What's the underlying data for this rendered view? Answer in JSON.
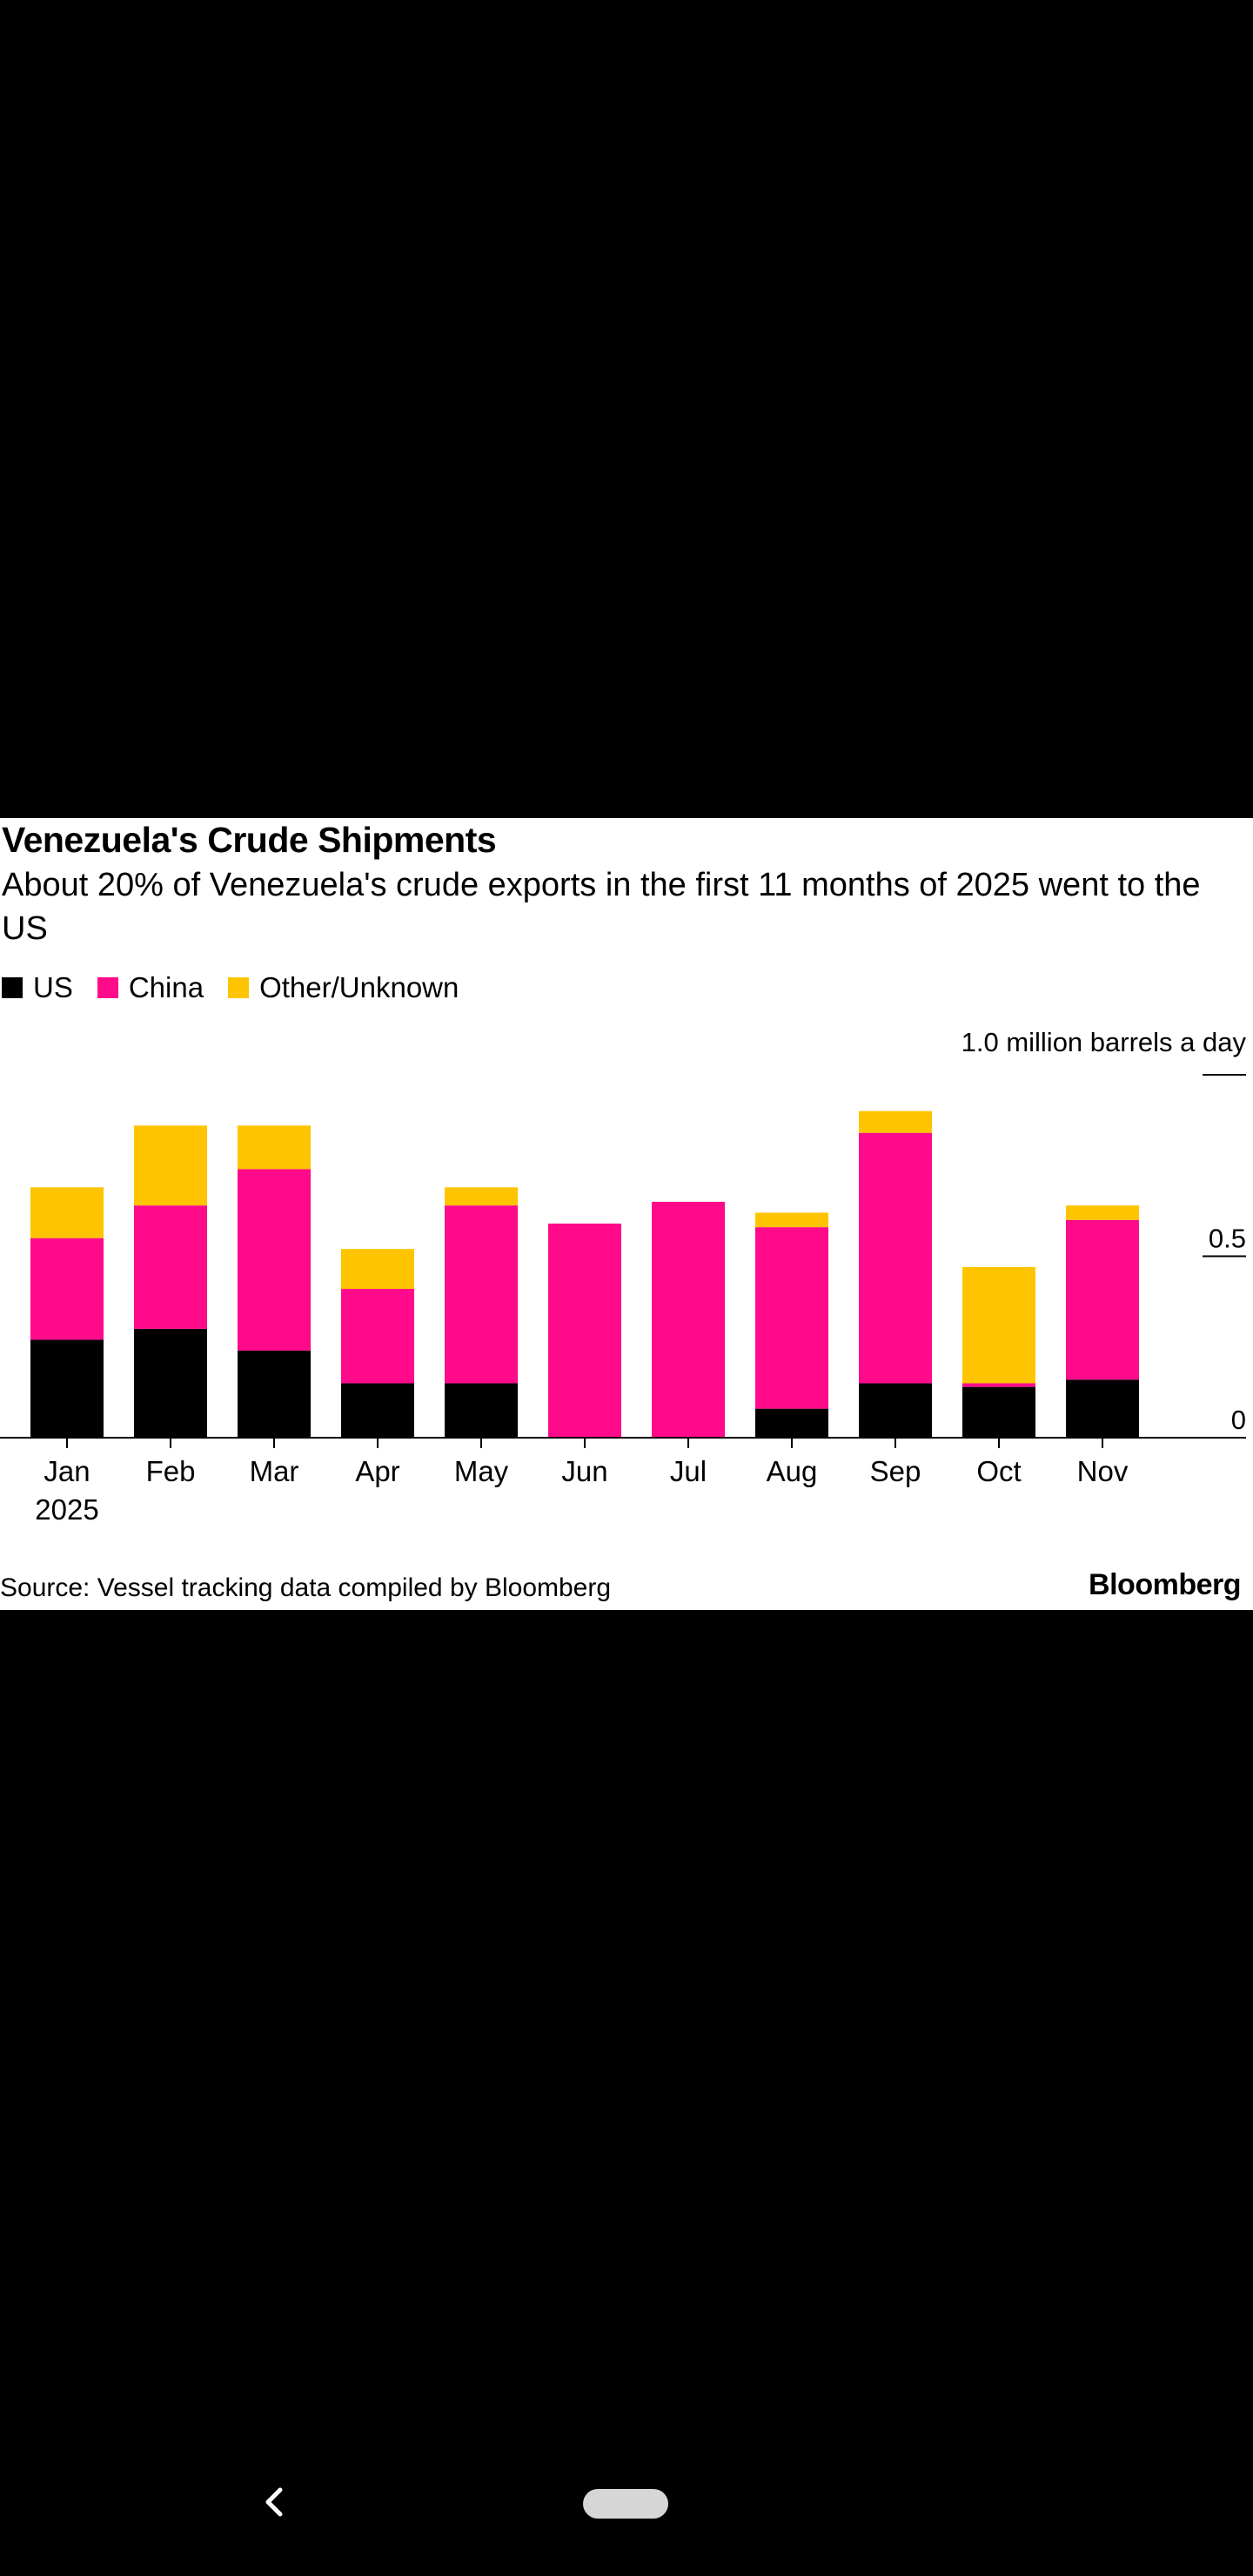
{
  "chart_data": {
    "type": "bar",
    "stacked": true,
    "title": "Venezuela's Crude Shipments",
    "subtitle": "About 20% of Venezuela's crude exports in the first 11 months of 2025 went to the US",
    "unit_label": "1.0 million barrels a day",
    "categories": [
      "Jan",
      "Feb",
      "Mar",
      "Apr",
      "May",
      "Jun",
      "Jul",
      "Aug",
      "Sep",
      "Oct",
      "Nov"
    ],
    "year_label": "2025",
    "series": [
      {
        "name": "US",
        "color": "#000000",
        "values": [
          0.27,
          0.3,
          0.24,
          0.15,
          0.15,
          0.0,
          0.0,
          0.08,
          0.15,
          0.14,
          0.16
        ]
      },
      {
        "name": "China",
        "color": "#ff0a8a",
        "values": [
          0.28,
          0.34,
          0.5,
          0.26,
          0.49,
          0.59,
          0.65,
          0.5,
          0.69,
          0.01,
          0.44
        ]
      },
      {
        "name": "Other/Unknown",
        "color": "#ffc400",
        "values": [
          0.14,
          0.22,
          0.12,
          0.11,
          0.05,
          0.0,
          0.0,
          0.04,
          0.06,
          0.32,
          0.04
        ]
      }
    ],
    "ylim": [
      0,
      1.0
    ],
    "yticks": [
      {
        "value": 0,
        "label": "0"
      },
      {
        "value": 0.5,
        "label": "0.5"
      },
      {
        "value": 1.0,
        "label": "1.0"
      }
    ],
    "legend_position": "top-left"
  },
  "source": "Source: Vessel tracking data compiled by Bloomberg",
  "brand": "Bloomberg"
}
